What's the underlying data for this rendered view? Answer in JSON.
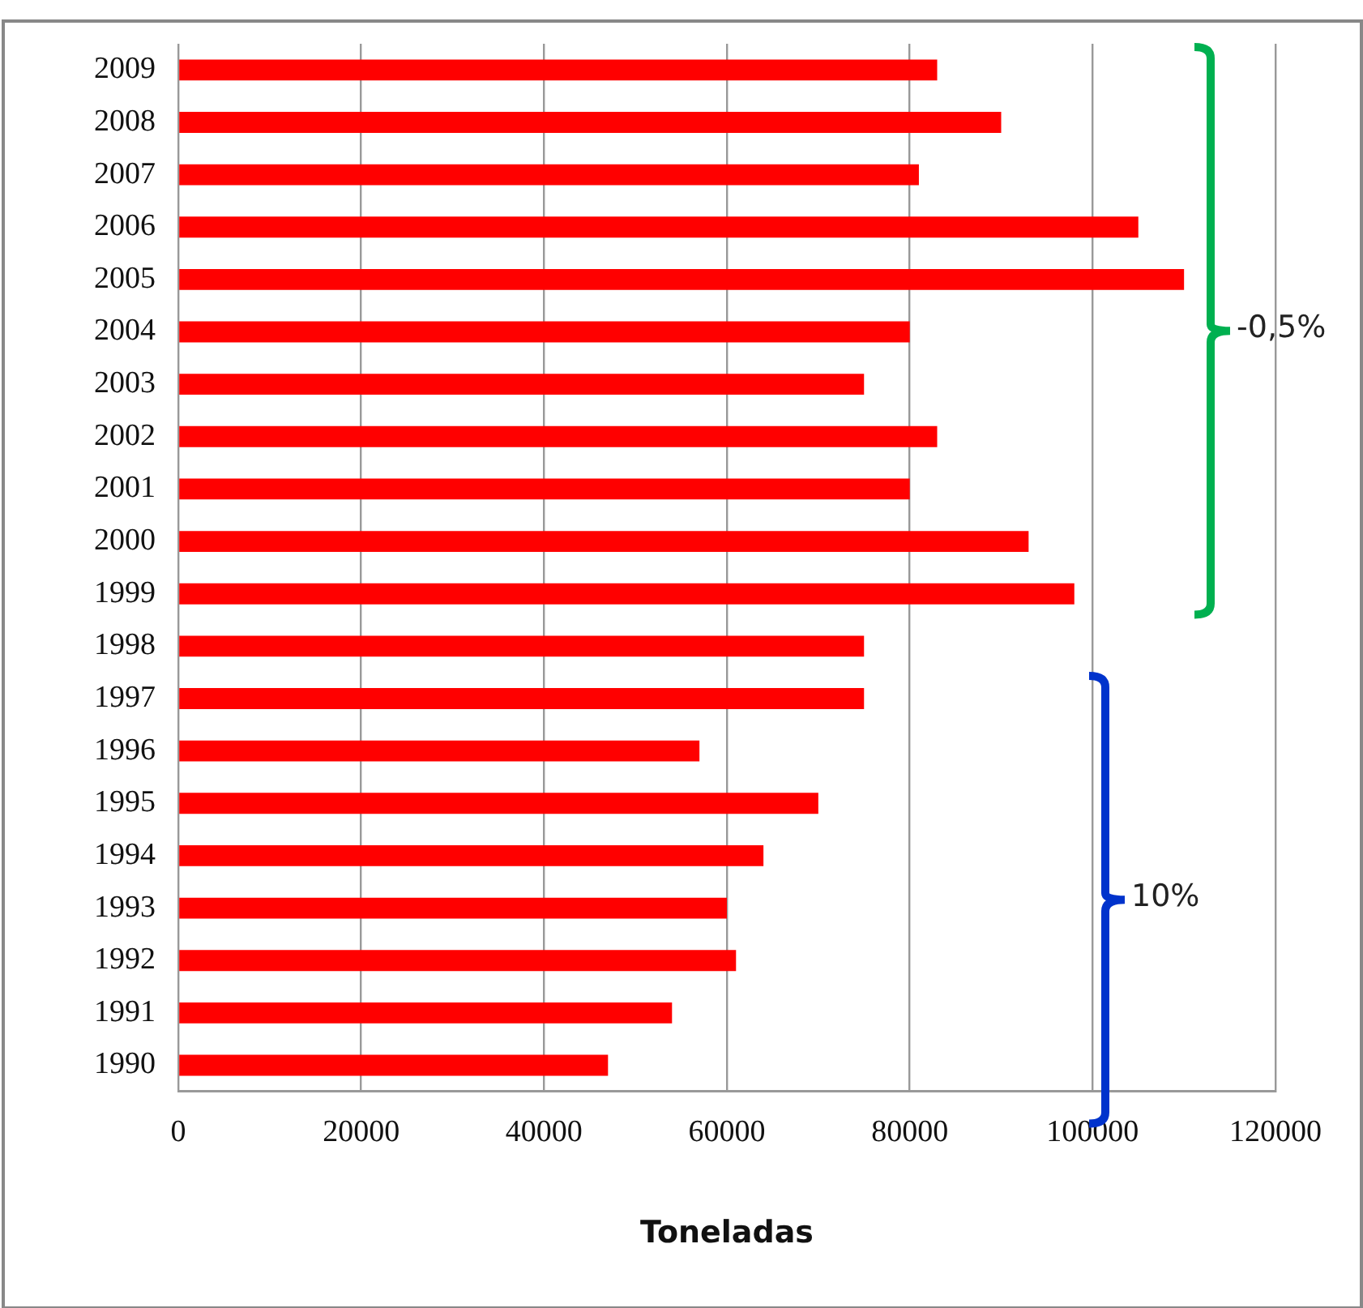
{
  "chart_data": {
    "type": "bar",
    "orientation": "horizontal",
    "xlabel": "Toneladas",
    "categories": [
      "2009",
      "2008",
      "2007",
      "2006",
      "2005",
      "2004",
      "2003",
      "2002",
      "2001",
      "2000",
      "1999",
      "1998",
      "1997",
      "1996",
      "1995",
      "1994",
      "1993",
      "1992",
      "1991",
      "1990"
    ],
    "values": [
      83000,
      90000,
      81000,
      105000,
      110000,
      80000,
      75000,
      83000,
      80000,
      93000,
      98000,
      75000,
      75000,
      57000,
      70000,
      64000,
      60000,
      61000,
      54000,
      47000
    ],
    "color": "#ff0000",
    "xlim": [
      0,
      120000
    ],
    "xticks": [
      0,
      20000,
      40000,
      60000,
      80000,
      100000,
      120000
    ],
    "grid": "x",
    "legend": false,
    "annotations": [
      "-0,5%",
      "10%"
    ]
  }
}
